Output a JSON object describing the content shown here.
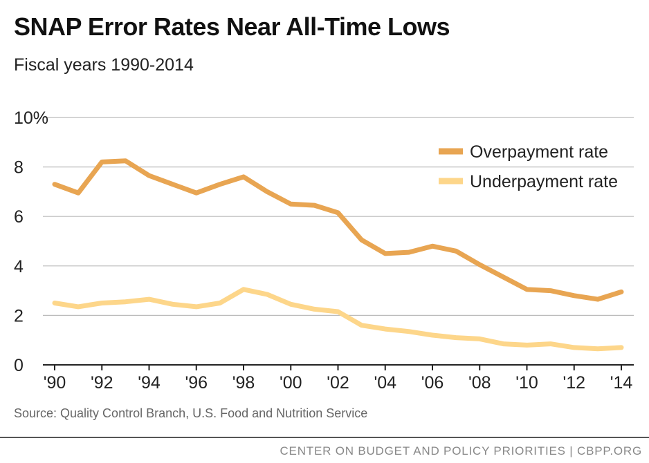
{
  "title": "SNAP Error Rates Near All-Time Lows",
  "subtitle": "Fiscal years 1990-2014",
  "source": "Source: Quality Control Branch, U.S. Food and Nutrition Service",
  "footer": "CENTER ON BUDGET AND POLICY PRIORITIES | CBPP.ORG",
  "chart_data": {
    "type": "line",
    "x": [
      1990,
      1991,
      1992,
      1993,
      1994,
      1995,
      1996,
      1997,
      1998,
      1999,
      2000,
      2001,
      2002,
      2003,
      2004,
      2005,
      2006,
      2007,
      2008,
      2009,
      2010,
      2011,
      2012,
      2013,
      2014
    ],
    "x_tick_labels": [
      "'90",
      "'92",
      "'94",
      "'96",
      "'98",
      "'00",
      "'02",
      "'04",
      "'06",
      "'08",
      "'10",
      "'12",
      "'14"
    ],
    "x_tick_values": [
      1990,
      1992,
      1994,
      1996,
      1998,
      2000,
      2002,
      2004,
      2006,
      2008,
      2010,
      2012,
      2014
    ],
    "y_tick_labels": [
      "0",
      "2",
      "4",
      "6",
      "8",
      "10%"
    ],
    "y_tick_values": [
      0,
      2,
      4,
      6,
      8,
      10
    ],
    "ylim": [
      0,
      10
    ],
    "grid": true,
    "legend_position": "top-right",
    "series": [
      {
        "name": "Overpayment rate",
        "color": "#e8a552",
        "values": [
          7.3,
          6.95,
          8.2,
          8.25,
          7.65,
          7.3,
          6.95,
          7.3,
          7.6,
          7.0,
          6.5,
          6.45,
          6.15,
          5.05,
          4.5,
          4.55,
          4.8,
          4.6,
          4.05,
          3.55,
          3.05,
          3.0,
          2.8,
          2.65,
          2.95
        ]
      },
      {
        "name": "Underpayment rate",
        "color": "#fdd68a",
        "values": [
          2.5,
          2.35,
          2.5,
          2.55,
          2.65,
          2.45,
          2.35,
          2.5,
          3.05,
          2.85,
          2.45,
          2.25,
          2.15,
          1.6,
          1.45,
          1.35,
          1.2,
          1.1,
          1.05,
          0.85,
          0.8,
          0.85,
          0.7,
          0.65,
          0.7
        ]
      }
    ]
  }
}
